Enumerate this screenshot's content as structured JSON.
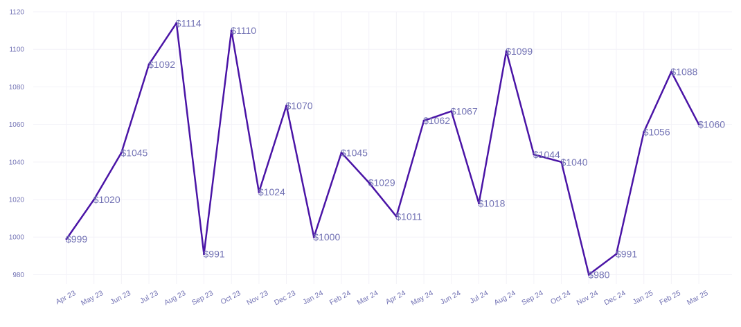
{
  "chart_data": {
    "type": "line",
    "title": "",
    "xlabel": "",
    "ylabel": "",
    "categories": [
      "Apr 23",
      "May 23",
      "Jun 23",
      "Jul 23",
      "Aug 23",
      "Sep 23",
      "Oct 23",
      "Nov 23",
      "Dec 23",
      "Jan 24",
      "Feb 24",
      "Mar 24",
      "Apr 24",
      "May 24",
      "Jun 24",
      "Jul 24",
      "Aug 24",
      "Sep 24",
      "Oct 24",
      "Nov 24",
      "Dec 24",
      "Jan 25",
      "Feb 25",
      "Mar 25"
    ],
    "values": [
      999,
      1020,
      1045,
      1092,
      1114,
      991,
      1110,
      1024,
      1070,
      1000,
      1045,
      1029,
      1011,
      1062,
      1067,
      1018,
      1099,
      1044,
      1040,
      980,
      991,
      1056,
      1088,
      1060
    ],
    "value_labels": [
      "$999",
      "$1020",
      "$1045",
      "$1092",
      "$1114",
      "$991",
      "$1110",
      "$1024",
      "$1070",
      "$1000",
      "$1045",
      "$1029",
      "$1011",
      "$1062",
      "$1067",
      "$1018",
      "$1099",
      "$1044",
      "$1040",
      "$980",
      "$991",
      "$1056",
      "$1088",
      "$1060"
    ],
    "y_ticks": [
      980,
      1000,
      1020,
      1040,
      1060,
      1080,
      1100,
      1120
    ],
    "ylim": [
      975,
      1120
    ],
    "grid": true,
    "legend": "none",
    "colors": {
      "line": "#4a14a6",
      "label": "#7272b4",
      "tick": "#7272b4",
      "grid": "#f3f2f8"
    }
  }
}
